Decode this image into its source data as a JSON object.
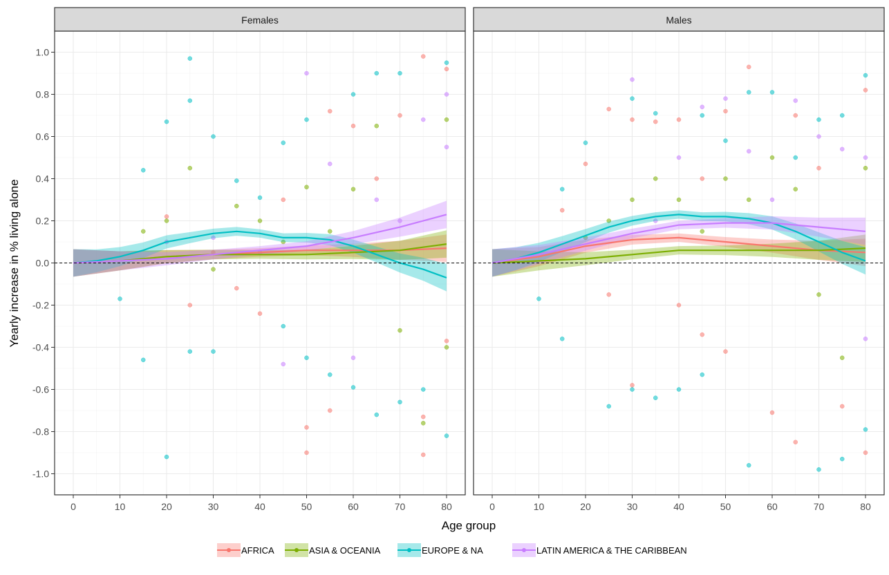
{
  "chart_data": {
    "type": "scatter",
    "facets": [
      "Females",
      "Males"
    ],
    "xlabel": "Age group",
    "ylabel": "Yearly increase in % living alone",
    "xlim": [
      -4,
      84
    ],
    "ylim": [
      -1.1,
      1.1
    ],
    "x_ticks": [
      0,
      10,
      20,
      30,
      40,
      50,
      60,
      70,
      80
    ],
    "y_ticks": [
      -1.0,
      -0.8,
      -0.6,
      -0.4,
      -0.2,
      0.0,
      0.2,
      0.4,
      0.6,
      0.8,
      1.0
    ],
    "y_tick_labels": [
      "-1.0",
      "-0.8",
      "-0.6",
      "-0.4",
      "-0.2",
      "0.0",
      "0.2",
      "0.4",
      "0.6",
      "0.8",
      "1.0"
    ],
    "reference_line": 0,
    "grid": true,
    "legend_position": "bottom",
    "series": [
      {
        "name": "AFRICA",
        "color": "#F8766D",
        "smooth": {
          "x": [
            0,
            10,
            20,
            30,
            40,
            50,
            60,
            70,
            80
          ],
          "Females": [
            0.0,
            0.01,
            0.03,
            0.04,
            0.05,
            0.06,
            0.06,
            0.06,
            0.07
          ],
          "Males": [
            0.0,
            0.03,
            0.08,
            0.11,
            0.12,
            0.1,
            0.08,
            0.06,
            0.05
          ]
        },
        "points": {
          "Females": [
            [
              20,
              0.22
            ],
            [
              25,
              -0.2
            ],
            [
              30,
              0.05
            ],
            [
              35,
              -0.12
            ],
            [
              40,
              -0.24
            ],
            [
              45,
              0.3
            ],
            [
              50,
              -0.78
            ],
            [
              50,
              -0.9
            ],
            [
              55,
              0.72
            ],
            [
              55,
              -0.7
            ],
            [
              60,
              0.65
            ],
            [
              65,
              0.4
            ],
            [
              70,
              0.7
            ],
            [
              75,
              0.98
            ],
            [
              75,
              -0.73
            ],
            [
              75,
              -0.91
            ],
            [
              80,
              0.92
            ],
            [
              80,
              -0.37
            ]
          ],
          "Males": [
            [
              15,
              0.25
            ],
            [
              20,
              0.47
            ],
            [
              25,
              0.73
            ],
            [
              25,
              -0.15
            ],
            [
              30,
              0.68
            ],
            [
              30,
              -0.58
            ],
            [
              35,
              0.67
            ],
            [
              40,
              0.68
            ],
            [
              40,
              -0.2
            ],
            [
              45,
              0.4
            ],
            [
              45,
              -0.34
            ],
            [
              50,
              0.72
            ],
            [
              50,
              -0.42
            ],
            [
              55,
              0.93
            ],
            [
              60,
              -0.71
            ],
            [
              65,
              0.7
            ],
            [
              65,
              -0.85
            ],
            [
              70,
              0.45
            ],
            [
              75,
              -0.68
            ],
            [
              80,
              0.82
            ],
            [
              80,
              -0.9
            ]
          ]
        }
      },
      {
        "name": "ASIA & OCEANIA",
        "color": "#7CAE00",
        "smooth": {
          "x": [
            0,
            10,
            20,
            30,
            40,
            50,
            60,
            70,
            80
          ],
          "Females": [
            0.0,
            0.01,
            0.03,
            0.04,
            0.04,
            0.04,
            0.05,
            0.06,
            0.09
          ],
          "Males": [
            0.0,
            0.01,
            0.02,
            0.04,
            0.06,
            0.06,
            0.06,
            0.06,
            0.07
          ]
        },
        "points": {
          "Females": [
            [
              15,
              0.15
            ],
            [
              20,
              0.2
            ],
            [
              25,
              0.45
            ],
            [
              30,
              -0.03
            ],
            [
              35,
              0.27
            ],
            [
              40,
              0.2
            ],
            [
              45,
              0.1
            ],
            [
              50,
              0.36
            ],
            [
              55,
              0.15
            ],
            [
              60,
              0.35
            ],
            [
              65,
              0.65
            ],
            [
              70,
              -0.32
            ],
            [
              75,
              -0.76
            ],
            [
              80,
              0.68
            ],
            [
              80,
              -0.4
            ]
          ],
          "Males": [
            [
              20,
              0.12
            ],
            [
              25,
              0.2
            ],
            [
              30,
              0.3
            ],
            [
              35,
              0.4
            ],
            [
              40,
              0.3
            ],
            [
              45,
              0.15
            ],
            [
              50,
              0.4
            ],
            [
              55,
              0.3
            ],
            [
              60,
              0.5
            ],
            [
              65,
              0.35
            ],
            [
              70,
              -0.15
            ],
            [
              75,
              -0.45
            ],
            [
              80,
              0.45
            ]
          ]
        }
      },
      {
        "name": "EUROPE & NA",
        "color": "#00BFC4",
        "smooth": {
          "x": [
            0,
            5,
            10,
            15,
            20,
            25,
            30,
            35,
            40,
            45,
            50,
            55,
            60,
            65,
            70,
            75,
            80
          ],
          "Females": [
            0.0,
            0.01,
            0.03,
            0.06,
            0.1,
            0.12,
            0.14,
            0.15,
            0.14,
            0.12,
            0.12,
            0.11,
            0.08,
            0.04,
            0.0,
            -0.03,
            -0.07
          ],
          "Males": [
            0.0,
            0.02,
            0.05,
            0.09,
            0.13,
            0.17,
            0.2,
            0.22,
            0.23,
            0.22,
            0.22,
            0.21,
            0.19,
            0.15,
            0.1,
            0.05,
            0.01
          ]
        },
        "points": {
          "Females": [
            [
              10,
              -0.17
            ],
            [
              15,
              0.44
            ],
            [
              15,
              -0.46
            ],
            [
              20,
              0.67
            ],
            [
              20,
              -0.92
            ],
            [
              25,
              0.97
            ],
            [
              25,
              0.77
            ],
            [
              25,
              -0.42
            ],
            [
              30,
              0.6
            ],
            [
              30,
              -0.42
            ],
            [
              35,
              0.39
            ],
            [
              40,
              0.31
            ],
            [
              45,
              0.57
            ],
            [
              45,
              -0.3
            ],
            [
              50,
              0.68
            ],
            [
              50,
              -0.45
            ],
            [
              55,
              -0.53
            ],
            [
              60,
              0.8
            ],
            [
              60,
              -0.59
            ],
            [
              65,
              0.9
            ],
            [
              65,
              -0.72
            ],
            [
              70,
              0.9
            ],
            [
              70,
              -0.66
            ],
            [
              75,
              -0.6
            ],
            [
              80,
              0.95
            ],
            [
              80,
              -0.82
            ]
          ],
          "Males": [
            [
              10,
              -0.17
            ],
            [
              15,
              0.35
            ],
            [
              15,
              -0.36
            ],
            [
              20,
              0.57
            ],
            [
              25,
              -0.68
            ],
            [
              30,
              0.78
            ],
            [
              30,
              -0.6
            ],
            [
              35,
              0.71
            ],
            [
              35,
              -0.64
            ],
            [
              40,
              -0.6
            ],
            [
              45,
              0.7
            ],
            [
              45,
              -0.53
            ],
            [
              50,
              0.58
            ],
            [
              55,
              0.81
            ],
            [
              55,
              -0.96
            ],
            [
              60,
              0.81
            ],
            [
              65,
              0.5
            ],
            [
              70,
              0.68
            ],
            [
              70,
              -0.98
            ],
            [
              75,
              0.7
            ],
            [
              75,
              -0.93
            ],
            [
              80,
              0.89
            ],
            [
              80,
              -0.79
            ]
          ]
        }
      },
      {
        "name": "LATIN AMERICA & THE CARIBBEAN",
        "color": "#C77CFF",
        "smooth": {
          "x": [
            0,
            10,
            20,
            30,
            40,
            50,
            60,
            70,
            80
          ],
          "Females": [
            0.0,
            0.01,
            0.02,
            0.04,
            0.06,
            0.08,
            0.12,
            0.17,
            0.23
          ],
          "Males": [
            0.0,
            0.04,
            0.09,
            0.14,
            0.18,
            0.19,
            0.19,
            0.17,
            0.15
          ]
        },
        "points": {
          "Females": [
            [
              20,
              0.1
            ],
            [
              30,
              0.12
            ],
            [
              40,
              0.05
            ],
            [
              45,
              -0.48
            ],
            [
              50,
              0.9
            ],
            [
              55,
              0.47
            ],
            [
              60,
              -0.45
            ],
            [
              65,
              0.3
            ],
            [
              70,
              0.2
            ],
            [
              75,
              0.68
            ],
            [
              80,
              0.8
            ],
            [
              80,
              0.55
            ]
          ],
          "Males": [
            [
              30,
              0.87
            ],
            [
              35,
              0.2
            ],
            [
              40,
              0.5
            ],
            [
              45,
              0.74
            ],
            [
              50,
              0.78
            ],
            [
              55,
              0.53
            ],
            [
              60,
              0.3
            ],
            [
              65,
              0.77
            ],
            [
              70,
              0.6
            ],
            [
              75,
              0.54
            ],
            [
              80,
              0.5
            ],
            [
              80,
              -0.36
            ]
          ]
        }
      }
    ]
  }
}
